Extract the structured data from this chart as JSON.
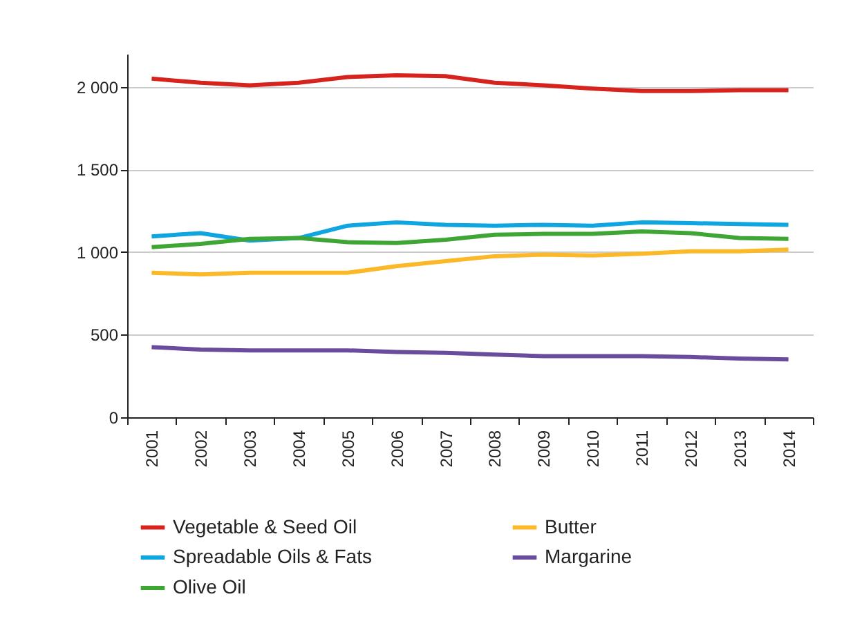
{
  "chart_data": {
    "type": "line",
    "categories": [
      "2001",
      "2002",
      "2003",
      "2004",
      "2005",
      "2006",
      "2007",
      "2008",
      "2009",
      "2010",
      "2011",
      "2012",
      "2013",
      "2014"
    ],
    "series": [
      {
        "name": "Vegetable & Seed Oil",
        "color": "#d7231e",
        "values": [
          2050,
          2025,
          2010,
          2025,
          2060,
          2070,
          2065,
          2025,
          2010,
          1990,
          1975,
          1975,
          1980,
          1980
        ]
      },
      {
        "name": "Butter",
        "color": "#fbb829",
        "values": [
          875,
          865,
          875,
          875,
          875,
          915,
          945,
          975,
          985,
          980,
          990,
          1005,
          1005,
          1015
        ]
      },
      {
        "name": "Spreadable Oils & Fats",
        "color": "#0ea5e0",
        "values": [
          1095,
          1115,
          1070,
          1085,
          1160,
          1180,
          1165,
          1160,
          1165,
          1160,
          1180,
          1175,
          1170,
          1165
        ]
      },
      {
        "name": "Margarine",
        "color": "#6a4c9c",
        "values": [
          425,
          410,
          405,
          405,
          405,
          395,
          390,
          380,
          370,
          370,
          370,
          365,
          355,
          350
        ]
      },
      {
        "name": "Olive Oil",
        "color": "#3fa535",
        "values": [
          1030,
          1050,
          1080,
          1085,
          1060,
          1055,
          1075,
          1105,
          1110,
          1110,
          1125,
          1115,
          1085,
          1080
        ]
      }
    ],
    "ylim": [
      0,
      2200
    ],
    "yticks": [
      0,
      {
        "value": 500,
        "label": "500"
      },
      {
        "value": 1000,
        "label": "1 000"
      },
      {
        "value": 1500,
        "label": "1 500"
      },
      {
        "value": 2000,
        "label": "2 000"
      }
    ],
    "grid": "y",
    "legend": "bottom",
    "marker": "none",
    "line_style": "solid"
  }
}
